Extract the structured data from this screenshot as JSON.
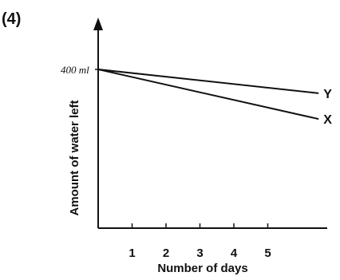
{
  "figure_label": "(4)",
  "chart_data": {
    "type": "line",
    "xlabel": "Number of days",
    "ylabel": "Amount of water left",
    "x_ticks": [
      1,
      2,
      3,
      4,
      5
    ],
    "y_tick_label": "400 ml",
    "series": [
      {
        "name": "Y",
        "x": [
          0,
          6.5
        ],
        "y": [
          400,
          340
        ]
      },
      {
        "name": "X",
        "x": [
          0,
          6.5
        ],
        "y": [
          400,
          275
        ]
      }
    ],
    "xlim": [
      0,
      6.8
    ],
    "ylim": [
      0,
      430
    ],
    "grid": false,
    "colors": {
      "line": "#111111"
    }
  }
}
